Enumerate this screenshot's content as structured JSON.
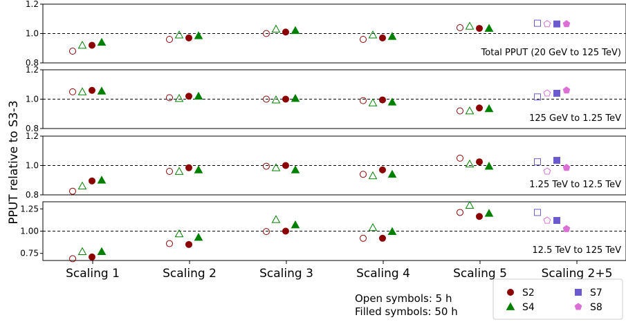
{
  "chart_data": {
    "type": "scatter",
    "ylabel": "PPUT relative to S3-3",
    "categories": [
      "Scaling 1",
      "Scaling 2",
      "Scaling 3",
      "Scaling 4",
      "Scaling 5",
      "Scaling 2+5"
    ],
    "reference_line": 1.0,
    "panels": [
      {
        "label": "Total PPUT (20 GeV to 125 TeV)",
        "ylim": [
          0.8,
          1.2
        ],
        "yticks": [
          "0.8",
          "1.0",
          "1.2"
        ],
        "series": [
          {
            "name": "S2",
            "open": [
              0.88,
              0.96,
              1.0,
              0.96,
              1.04,
              null
            ],
            "filled": [
              0.92,
              0.97,
              1.01,
              0.97,
              1.035,
              null
            ]
          },
          {
            "name": "S4",
            "open": [
              0.92,
              0.99,
              1.03,
              0.99,
              1.05,
              null
            ],
            "filled": [
              0.94,
              0.985,
              1.02,
              0.98,
              1.035,
              null
            ]
          },
          {
            "name": "S7",
            "open": [
              null,
              null,
              null,
              null,
              null,
              1.07
            ],
            "filled": [
              null,
              null,
              null,
              null,
              null,
              1.065
            ]
          },
          {
            "name": "S8",
            "open": [
              null,
              null,
              null,
              null,
              null,
              1.065
            ],
            "filled": [
              null,
              null,
              null,
              null,
              null,
              1.065
            ]
          }
        ]
      },
      {
        "label": "125 GeV to 1.25 TeV",
        "ylim": [
          0.8,
          1.2
        ],
        "yticks": [
          "0.8",
          "1.0",
          "1.2"
        ],
        "series": [
          {
            "name": "S2",
            "open": [
              1.05,
              1.01,
              1.0,
              0.99,
              0.92,
              null
            ],
            "filled": [
              1.06,
              1.02,
              1.0,
              0.995,
              0.94,
              null
            ]
          },
          {
            "name": "S4",
            "open": [
              1.05,
              1.005,
              0.995,
              0.975,
              0.92,
              null
            ],
            "filled": [
              1.055,
              1.02,
              1.005,
              0.98,
              0.935,
              null
            ]
          },
          {
            "name": "S7",
            "open": [
              null,
              null,
              null,
              null,
              null,
              1.015
            ],
            "filled": [
              null,
              null,
              null,
              null,
              null,
              1.04
            ]
          },
          {
            "name": "S8",
            "open": [
              null,
              null,
              null,
              null,
              null,
              1.04
            ],
            "filled": [
              null,
              null,
              null,
              null,
              null,
              1.06
            ]
          }
        ]
      },
      {
        "label": "1.25 TeV to 12.5 TeV",
        "ylim": [
          0.8,
          1.2
        ],
        "yticks": [
          "0.8",
          "1.0",
          "1.2"
        ],
        "series": [
          {
            "name": "S2",
            "open": [
              0.825,
              0.96,
              0.995,
              0.94,
              1.05,
              null
            ],
            "filled": [
              0.895,
              0.985,
              1.0,
              0.97,
              1.025,
              null
            ]
          },
          {
            "name": "S4",
            "open": [
              0.86,
              0.96,
              0.985,
              0.93,
              1.01,
              null
            ],
            "filled": [
              0.9,
              0.97,
              0.97,
              0.94,
              0.995,
              null
            ]
          },
          {
            "name": "S7",
            "open": [
              null,
              null,
              null,
              null,
              null,
              1.025
            ],
            "filled": [
              null,
              null,
              null,
              null,
              null,
              1.035
            ]
          },
          {
            "name": "S8",
            "open": [
              null,
              null,
              null,
              null,
              null,
              0.96
            ],
            "filled": [
              null,
              null,
              null,
              null,
              null,
              0.985
            ]
          }
        ]
      },
      {
        "label": "12.5 TeV to 125 TeV",
        "ylim": [
          0.67,
          1.33
        ],
        "yticks": [
          "0.75",
          "1.00",
          "1.25"
        ],
        "series": [
          {
            "name": "S2",
            "open": [
              0.69,
              0.86,
              0.995,
              0.92,
              1.21,
              null
            ],
            "filled": [
              0.71,
              0.85,
              1.0,
              0.92,
              1.165,
              null
            ]
          },
          {
            "name": "S4",
            "open": [
              0.77,
              0.97,
              1.13,
              1.04,
              1.29,
              null
            ],
            "filled": [
              0.77,
              0.93,
              1.07,
              0.995,
              1.2,
              null
            ]
          },
          {
            "name": "S7",
            "open": [
              null,
              null,
              null,
              null,
              null,
              1.21
            ],
            "filled": [
              null,
              null,
              null,
              null,
              null,
              1.12
            ]
          },
          {
            "name": "S8",
            "open": [
              null,
              null,
              null,
              null,
              null,
              1.12
            ],
            "filled": [
              null,
              null,
              null,
              null,
              null,
              1.025
            ]
          }
        ]
      }
    ],
    "legend": {
      "placement": "bottom-right",
      "entries": [
        "S2",
        "S4",
        "S7",
        "S8"
      ]
    },
    "annotations": [
      "Open symbols: 5 h",
      "Filled symbols: 50 h"
    ],
    "colors": {
      "S2": "#8b0000",
      "S4": "#008000",
      "S7": "#6a5acd",
      "S8": "#da70d6"
    },
    "markers": {
      "S2": "circle",
      "S4": "triangle",
      "S7": "square",
      "S8": "pentagon"
    }
  }
}
